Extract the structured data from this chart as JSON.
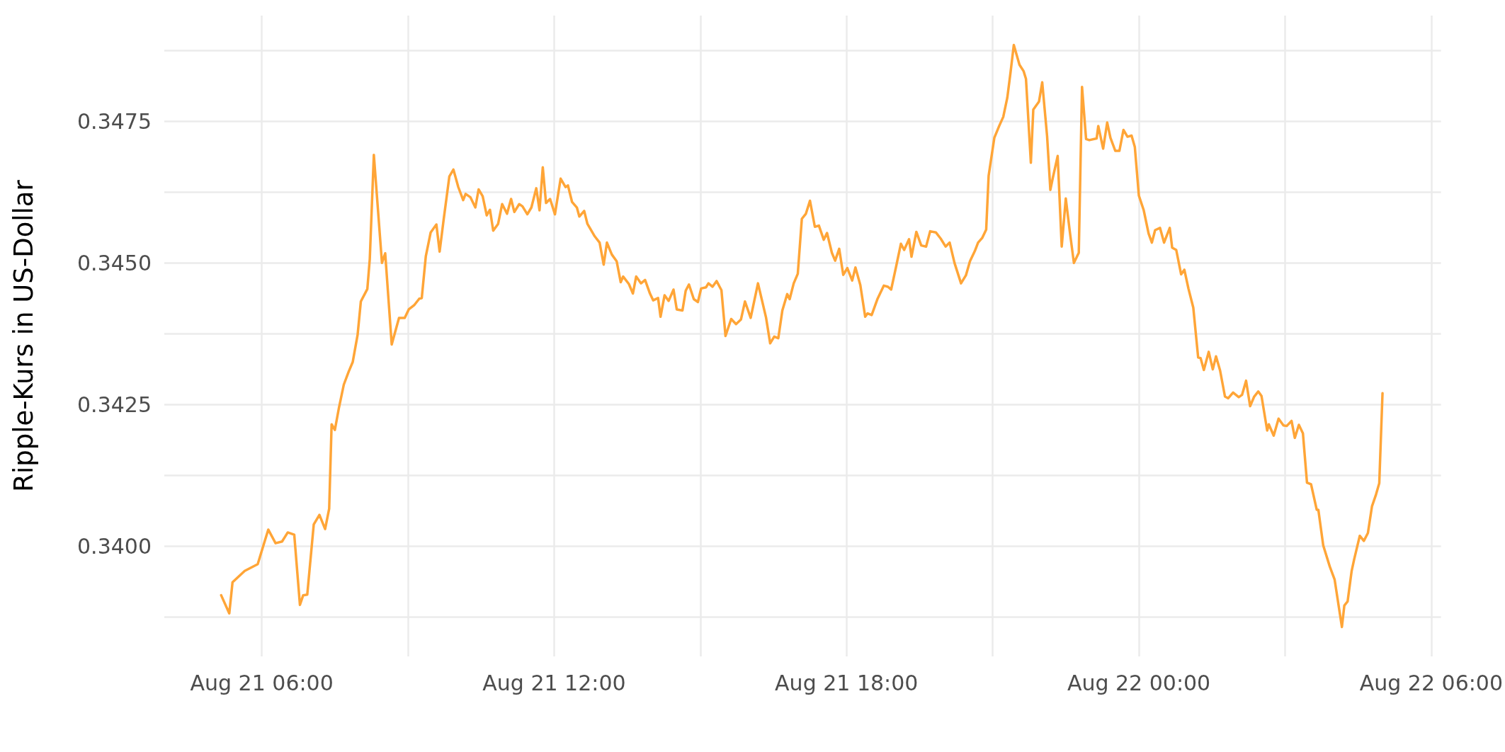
{
  "chart_data": {
    "type": "line",
    "ylabel": "Ripple-Kurs in US-Dollar",
    "xlim": [
      "--08-21T04:00",
      "--08-22T06:12"
    ],
    "xticks": [
      {
        "value": "--08-21T06:00",
        "label": "Aug 21 06:00"
      },
      {
        "value": "--08-21T09:00",
        "label": null
      },
      {
        "value": "--08-21T12:00",
        "label": "Aug 21 12:00"
      },
      {
        "value": "--08-21T15:00",
        "label": null
      },
      {
        "value": "--08-21T18:00",
        "label": "Aug 21 18:00"
      },
      {
        "value": "--08-21T21:00",
        "label": null
      },
      {
        "value": "--08-22T00:00",
        "label": "Aug 22 00:00"
      },
      {
        "value": "--08-22T03:00",
        "label": null
      },
      {
        "value": "--08-22T06:00",
        "label": "Aug 22 06:00"
      }
    ],
    "ylim": [
      0.33805,
      0.34937
    ],
    "yticks": [
      {
        "value": 0.33875,
        "label": null
      },
      {
        "value": 0.34,
        "label": "0.3400"
      },
      {
        "value": 0.34125,
        "label": null
      },
      {
        "value": 0.3425,
        "label": "0.3425"
      },
      {
        "value": 0.34375,
        "label": null
      },
      {
        "value": 0.345,
        "label": "0.3450"
      },
      {
        "value": 0.34625,
        "label": null
      },
      {
        "value": 0.3475,
        "label": "0.3475"
      },
      {
        "value": 0.34875,
        "label": null
      }
    ],
    "grid": true,
    "marker": "none",
    "line_style": "solid",
    "series": [
      {
        "color": "#ffa537",
        "x": [
          "--08-21T05:10",
          "--08-21T05:20",
          "--08-21T05:24",
          "--08-21T05:39",
          "--08-21T05:55",
          "--08-21T06:08",
          "--08-21T06:17",
          "--08-21T06:25",
          "--08-21T06:32",
          "--08-21T06:40",
          "--08-21T06:47",
          "--08-21T06:51",
          "--08-21T06:56",
          "--08-21T07:04",
          "--08-21T07:11",
          "--08-21T07:18",
          "--08-21T07:23",
          "--08-21T07:26",
          "--08-21T07:30",
          "--08-21T07:35",
          "--08-21T07:41",
          "--08-21T07:47",
          "--08-21T07:52",
          "--08-21T07:58",
          "--08-21T08:02",
          "--08-21T08:10",
          "--08-21T08:13",
          "--08-21T08:18",
          "--08-21T08:28",
          "--08-21T08:32",
          "--08-21T08:40",
          "--08-21T08:49",
          "--08-21T08:56",
          "--08-21T09:01",
          "--08-21T09:08",
          "--08-21T09:14",
          "--08-21T09:17",
          "--08-21T09:22",
          "--08-21T09:28",
          "--08-21T09:35",
          "--08-21T09:39",
          "--08-21T09:44",
          "--08-21T09:51",
          "--08-21T09:56",
          "--08-21T10:02",
          "--08-21T10:08",
          "--08-21T10:11",
          "--08-21T10:17",
          "--08-21T10:23",
          "--08-21T10:27",
          "--08-21T10:32",
          "--08-21T10:37",
          "--08-21T10:41",
          "--08-21T10:45",
          "--08-21T10:51",
          "--08-21T10:56",
          "--08-21T11:02",
          "--08-21T11:07",
          "--08-21T11:11",
          "--08-21T11:17",
          "--08-21T11:21",
          "--08-21T11:27",
          "--08-21T11:32",
          "--08-21T11:38",
          "--08-21T11:42",
          "--08-21T11:46",
          "--08-21T11:50",
          "--08-21T11:55",
          "--08-21T12:01",
          "--08-21T12:08",
          "--08-21T12:14",
          "--08-21T12:17",
          "--08-21T12:22",
          "--08-21T12:28",
          "--08-21T12:31",
          "--08-21T12:37",
          "--08-21T12:41",
          "--08-21T12:50",
          "--08-21T12:56",
          "--08-21T13:01",
          "--08-21T13:05",
          "--08-21T13:11",
          "--08-21T13:17",
          "--08-21T13:22",
          "--08-21T13:25",
          "--08-21T13:32",
          "--08-21T13:37",
          "--08-21T13:41",
          "--08-21T13:47",
          "--08-21T13:52",
          "--08-21T13:58",
          "--08-21T14:02",
          "--08-21T14:08",
          "--08-21T14:11",
          "--08-21T14:16",
          "--08-21T14:21",
          "--08-21T14:27",
          "--08-21T14:31",
          "--08-21T14:38",
          "--08-21T14:42",
          "--08-21T14:46",
          "--08-21T14:52",
          "--08-21T14:57",
          "--08-21T15:01",
          "--08-21T15:07",
          "--08-21T15:10",
          "--08-21T15:15",
          "--08-21T15:20",
          "--08-21T15:26",
          "--08-21T15:31",
          "--08-21T15:38",
          "--08-21T15:44",
          "--08-21T15:50",
          "--08-21T15:55",
          "--08-21T16:02",
          "--08-21T16:11",
          "--08-21T16:21",
          "--08-21T16:26",
          "--08-21T16:31",
          "--08-21T16:36",
          "--08-21T16:41",
          "--08-21T16:47",
          "--08-21T16:50",
          "--08-21T16:55",
          "--08-21T17:00",
          "--08-21T17:05",
          "--08-21T17:10",
          "--08-21T17:15",
          "--08-21T17:21",
          "--08-21T17:26",
          "--08-21T17:32",
          "--08-21T17:36",
          "--08-21T17:42",
          "--08-21T17:46",
          "--08-21T17:51",
          "--08-21T17:56",
          "--08-21T18:01",
          "--08-21T18:07",
          "--08-21T18:11",
          "--08-21T18:17",
          "--08-21T18:23",
          "--08-21T18:26",
          "--08-21T18:31",
          "--08-21T18:38",
          "--08-21T18:46",
          "--08-21T18:51",
          "--08-21T18:55",
          "--08-21T19:01",
          "--08-21T19:07",
          "--08-21T19:11",
          "--08-21T19:17",
          "--08-21T19:20",
          "--08-21T19:26",
          "--08-21T19:32",
          "--08-21T19:38",
          "--08-21T19:43",
          "--08-21T19:50",
          "--08-21T19:56",
          "--08-21T20:02",
          "--08-21T20:07",
          "--08-21T20:13",
          "--08-21T20:21",
          "--08-21T20:27",
          "--08-21T20:32",
          "--08-21T20:38",
          "--08-21T20:42",
          "--08-21T20:47",
          "--08-21T20:52",
          "--08-21T20:55",
          "--08-21T21:02",
          "--08-21T21:08",
          "--08-21T21:13",
          "--08-21T21:18",
          "--08-21T21:22",
          "--08-21T21:26",
          "--08-21T21:33",
          "--08-21T21:38",
          "--08-21T21:41",
          "--08-21T21:47",
          "--08-21T21:50",
          "--08-21T21:57",
          "--08-21T22:01",
          "--08-21T22:07",
          "--08-21T22:11",
          "--08-21T22:14",
          "--08-21T22:20",
          "--08-21T22:25",
          "--08-21T22:30",
          "--08-21T22:35",
          "--08-21T22:40",
          "--08-21T22:46",
          "--08-21T22:50",
          "--08-21T22:55",
          "--08-21T22:59",
          "--08-21T23:08",
          "--08-21T23:10",
          "--08-21T23:16",
          "--08-21T23:21",
          "--08-21T23:25",
          "--08-21T23:31",
          "--08-21T23:36",
          "--08-21T23:41",
          "--08-21T23:46",
          "--08-21T23:51",
          "--08-21T23:55",
          "--08-22T00:00",
          "--08-22T00:06",
          "--08-22T00:12",
          "--08-22T00:16",
          "--08-22T00:20",
          "--08-22T00:26",
          "--08-22T00:31",
          "--08-22T00:38",
          "--08-22T00:41",
          "--08-22T00:46",
          "--08-22T00:52",
          "--08-22T00:56",
          "--08-22T01:01",
          "--08-22T01:07",
          "--08-22T01:13",
          "--08-22T01:16",
          "--08-22T01:20",
          "--08-22T01:26",
          "--08-22T01:31",
          "--08-22T01:35",
          "--08-22T01:40",
          "--08-22T01:46",
          "--08-22T01:50",
          "--08-22T01:56",
          "--08-22T02:03",
          "--08-22T02:07",
          "--08-22T02:12",
          "--08-22T02:17",
          "--08-22T02:22",
          "--08-22T02:27",
          "--08-22T02:31",
          "--08-22T02:38",
          "--08-22T02:40",
          "--08-22T02:46",
          "--08-22T02:52",
          "--08-22T02:58",
          "--08-22T03:02",
          "--08-22T03:08",
          "--08-22T03:12",
          "--08-22T03:17",
          "--08-22T03:22",
          "--08-22T03:27",
          "--08-22T03:32",
          "--08-22T03:39",
          "--08-22T03:41",
          "--08-22T03:47",
          "--08-22T03:55",
          "--08-22T04:01",
          "--08-22T04:10",
          "--08-22T04:13",
          "--08-22T04:17",
          "--08-22T04:22",
          "--08-22T04:25",
          "--08-22T04:32",
          "--08-22T04:37",
          "--08-22T04:42",
          "--08-22T04:47",
          "--08-22T04:52",
          "--08-22T04:56",
          "--08-22T05:00"
        ],
        "values": [
          0.33913,
          0.33881,
          0.33936,
          0.33956,
          0.33968,
          0.34029,
          0.34005,
          0.34008,
          0.34024,
          0.3402,
          0.33896,
          0.33913,
          0.33914,
          0.34038,
          0.34055,
          0.3403,
          0.34066,
          0.34215,
          0.34205,
          0.34244,
          0.34285,
          0.34308,
          0.34325,
          0.34373,
          0.34432,
          0.34454,
          0.34507,
          0.34691,
          0.345,
          0.34517,
          0.34356,
          0.34403,
          0.34403,
          0.34418,
          0.34426,
          0.34437,
          0.34438,
          0.34512,
          0.34554,
          0.34568,
          0.3452,
          0.34577,
          0.34653,
          0.34665,
          0.34634,
          0.34611,
          0.34622,
          0.34616,
          0.34598,
          0.3463,
          0.34618,
          0.34584,
          0.34594,
          0.34557,
          0.34569,
          0.34604,
          0.34587,
          0.34613,
          0.3459,
          0.34604,
          0.346,
          0.34586,
          0.34598,
          0.34632,
          0.34593,
          0.34669,
          0.34606,
          0.34613,
          0.34586,
          0.34649,
          0.34634,
          0.34637,
          0.34608,
          0.34598,
          0.34582,
          0.34592,
          0.34569,
          0.34547,
          0.34536,
          0.34497,
          0.34536,
          0.34515,
          0.34503,
          0.34466,
          0.34476,
          0.34463,
          0.34446,
          0.34476,
          0.34464,
          0.3447,
          0.34446,
          0.34434,
          0.34438,
          0.34405,
          0.34443,
          0.34433,
          0.34453,
          0.34418,
          0.34416,
          0.34451,
          0.34462,
          0.34436,
          0.34431,
          0.34455,
          0.34457,
          0.34464,
          0.34458,
          0.34468,
          0.34452,
          0.34371,
          0.34401,
          0.34392,
          0.344,
          0.34432,
          0.34403,
          0.34464,
          0.34403,
          0.34358,
          0.3437,
          0.34367,
          0.34416,
          0.34445,
          0.34436,
          0.34464,
          0.34481,
          0.34578,
          0.34587,
          0.3461,
          0.34564,
          0.34566,
          0.34541,
          0.34553,
          0.34518,
          0.34504,
          0.34525,
          0.34479,
          0.34491,
          0.34469,
          0.34492,
          0.34461,
          0.34405,
          0.34411,
          0.34408,
          0.34436,
          0.3446,
          0.34458,
          0.34453,
          0.34493,
          0.34534,
          0.34523,
          0.34542,
          0.34511,
          0.34555,
          0.34531,
          0.34529,
          0.34556,
          0.34554,
          0.34543,
          0.34529,
          0.34536,
          0.345,
          0.34464,
          0.34478,
          0.34503,
          0.34521,
          0.34536,
          0.34544,
          0.34559,
          0.34654,
          0.34721,
          0.34742,
          0.34758,
          0.34792,
          0.34837,
          0.34885,
          0.3485,
          0.34839,
          0.34825,
          0.34677,
          0.34771,
          0.34785,
          0.34819,
          0.34724,
          0.34629,
          0.3465,
          0.34689,
          0.34529,
          0.34614,
          0.34555,
          0.345,
          0.34518,
          0.34811,
          0.34719,
          0.34717,
          0.3472,
          0.34742,
          0.34702,
          0.34748,
          0.34721,
          0.34698,
          0.34698,
          0.34735,
          0.34723,
          0.34725,
          0.34705,
          0.34619,
          0.34593,
          0.34552,
          0.34536,
          0.34558,
          0.34562,
          0.34536,
          0.34562,
          0.34527,
          0.34523,
          0.3448,
          0.34488,
          0.34455,
          0.34421,
          0.34333,
          0.34332,
          0.34311,
          0.34343,
          0.34312,
          0.34335,
          0.3431,
          0.34264,
          0.34261,
          0.34271,
          0.34263,
          0.34267,
          0.34292,
          0.34247,
          0.34264,
          0.34273,
          0.34265,
          0.34204,
          0.34215,
          0.34195,
          0.34225,
          0.34213,
          0.34212,
          0.34221,
          0.34191,
          0.34214,
          0.34199,
          0.34112,
          0.34109,
          0.34064,
          0.34064,
          0.34001,
          0.33964,
          0.33941,
          0.33857,
          0.33895,
          0.33902,
          0.33956,
          0.33976,
          0.34018,
          0.34009,
          0.34023,
          0.3407,
          0.34091,
          0.34111,
          0.3427
        ]
      }
    ]
  }
}
